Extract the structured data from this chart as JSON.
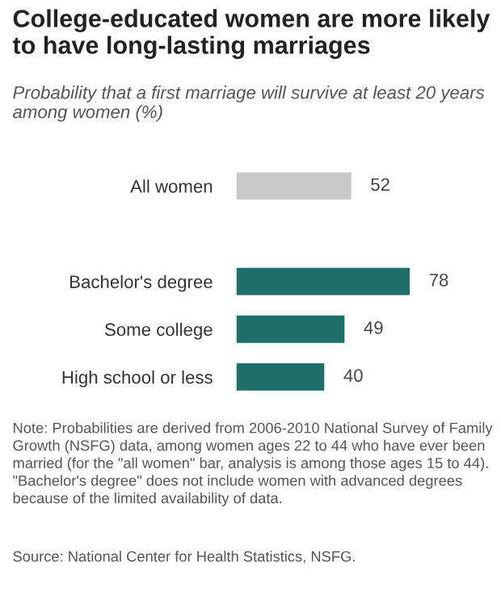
{
  "chart_data": {
    "type": "bar",
    "orientation": "horizontal",
    "title": "College-educated women are more likely to have long-lasting marriages",
    "subtitle": "Probability that a first marriage will survive at least 20 years among women (%)",
    "categories": [
      "All women",
      null,
      "Bachelor's degree",
      "Some college",
      "High school or less"
    ],
    "values": [
      52,
      null,
      78,
      49,
      40
    ],
    "colors": [
      "#c8c8c8",
      "#c8c8c8",
      "#1e6e6a",
      "#1e6e6a",
      "#1e6e6a"
    ],
    "data_labels": true,
    "grid": false,
    "annotations": [
      "Note: Probabilities are derived from 2006-2010 National Survey of Family Growth (NSFG) data, among women ages 22 to 44 who have ever been married (for the \"all women\" bar, analysis is among those ages 15 to 44). \"Bachelor's degree\" does not include women with advanced degrees because of the limited availability of data.",
      "Source: National Center for Health Statistics, NSFG."
    ]
  }
}
